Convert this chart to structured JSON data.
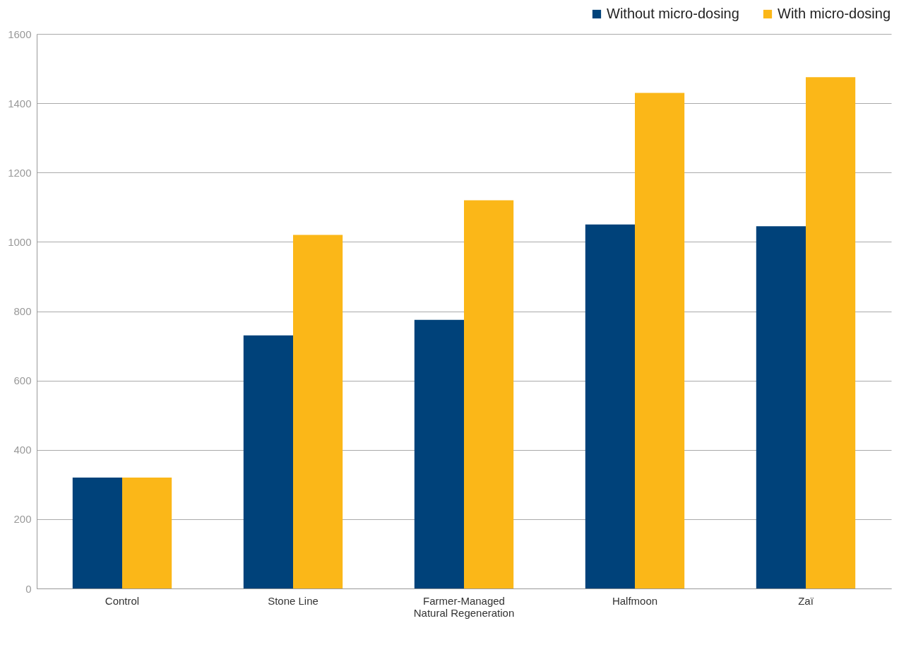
{
  "chart_data": {
    "type": "bar",
    "categories": [
      "Control",
      "Stone Line",
      "Farmer-Managed Natural Regeneration",
      "Halfmoon",
      "Zaï"
    ],
    "series": [
      {
        "name": "Without micro-dosing",
        "color": "#00427a",
        "values": [
          320,
          730,
          775,
          1050,
          1045
        ]
      },
      {
        "name": "With micro-dosing",
        "color": "#fbb718",
        "values": [
          320,
          1020,
          1120,
          1430,
          1475
        ]
      }
    ],
    "ylim": [
      0,
      1600
    ],
    "yticks": [
      0,
      200,
      400,
      600,
      800,
      1000,
      1200,
      1400,
      1600
    ],
    "grid": "y",
    "legend": "top right"
  }
}
